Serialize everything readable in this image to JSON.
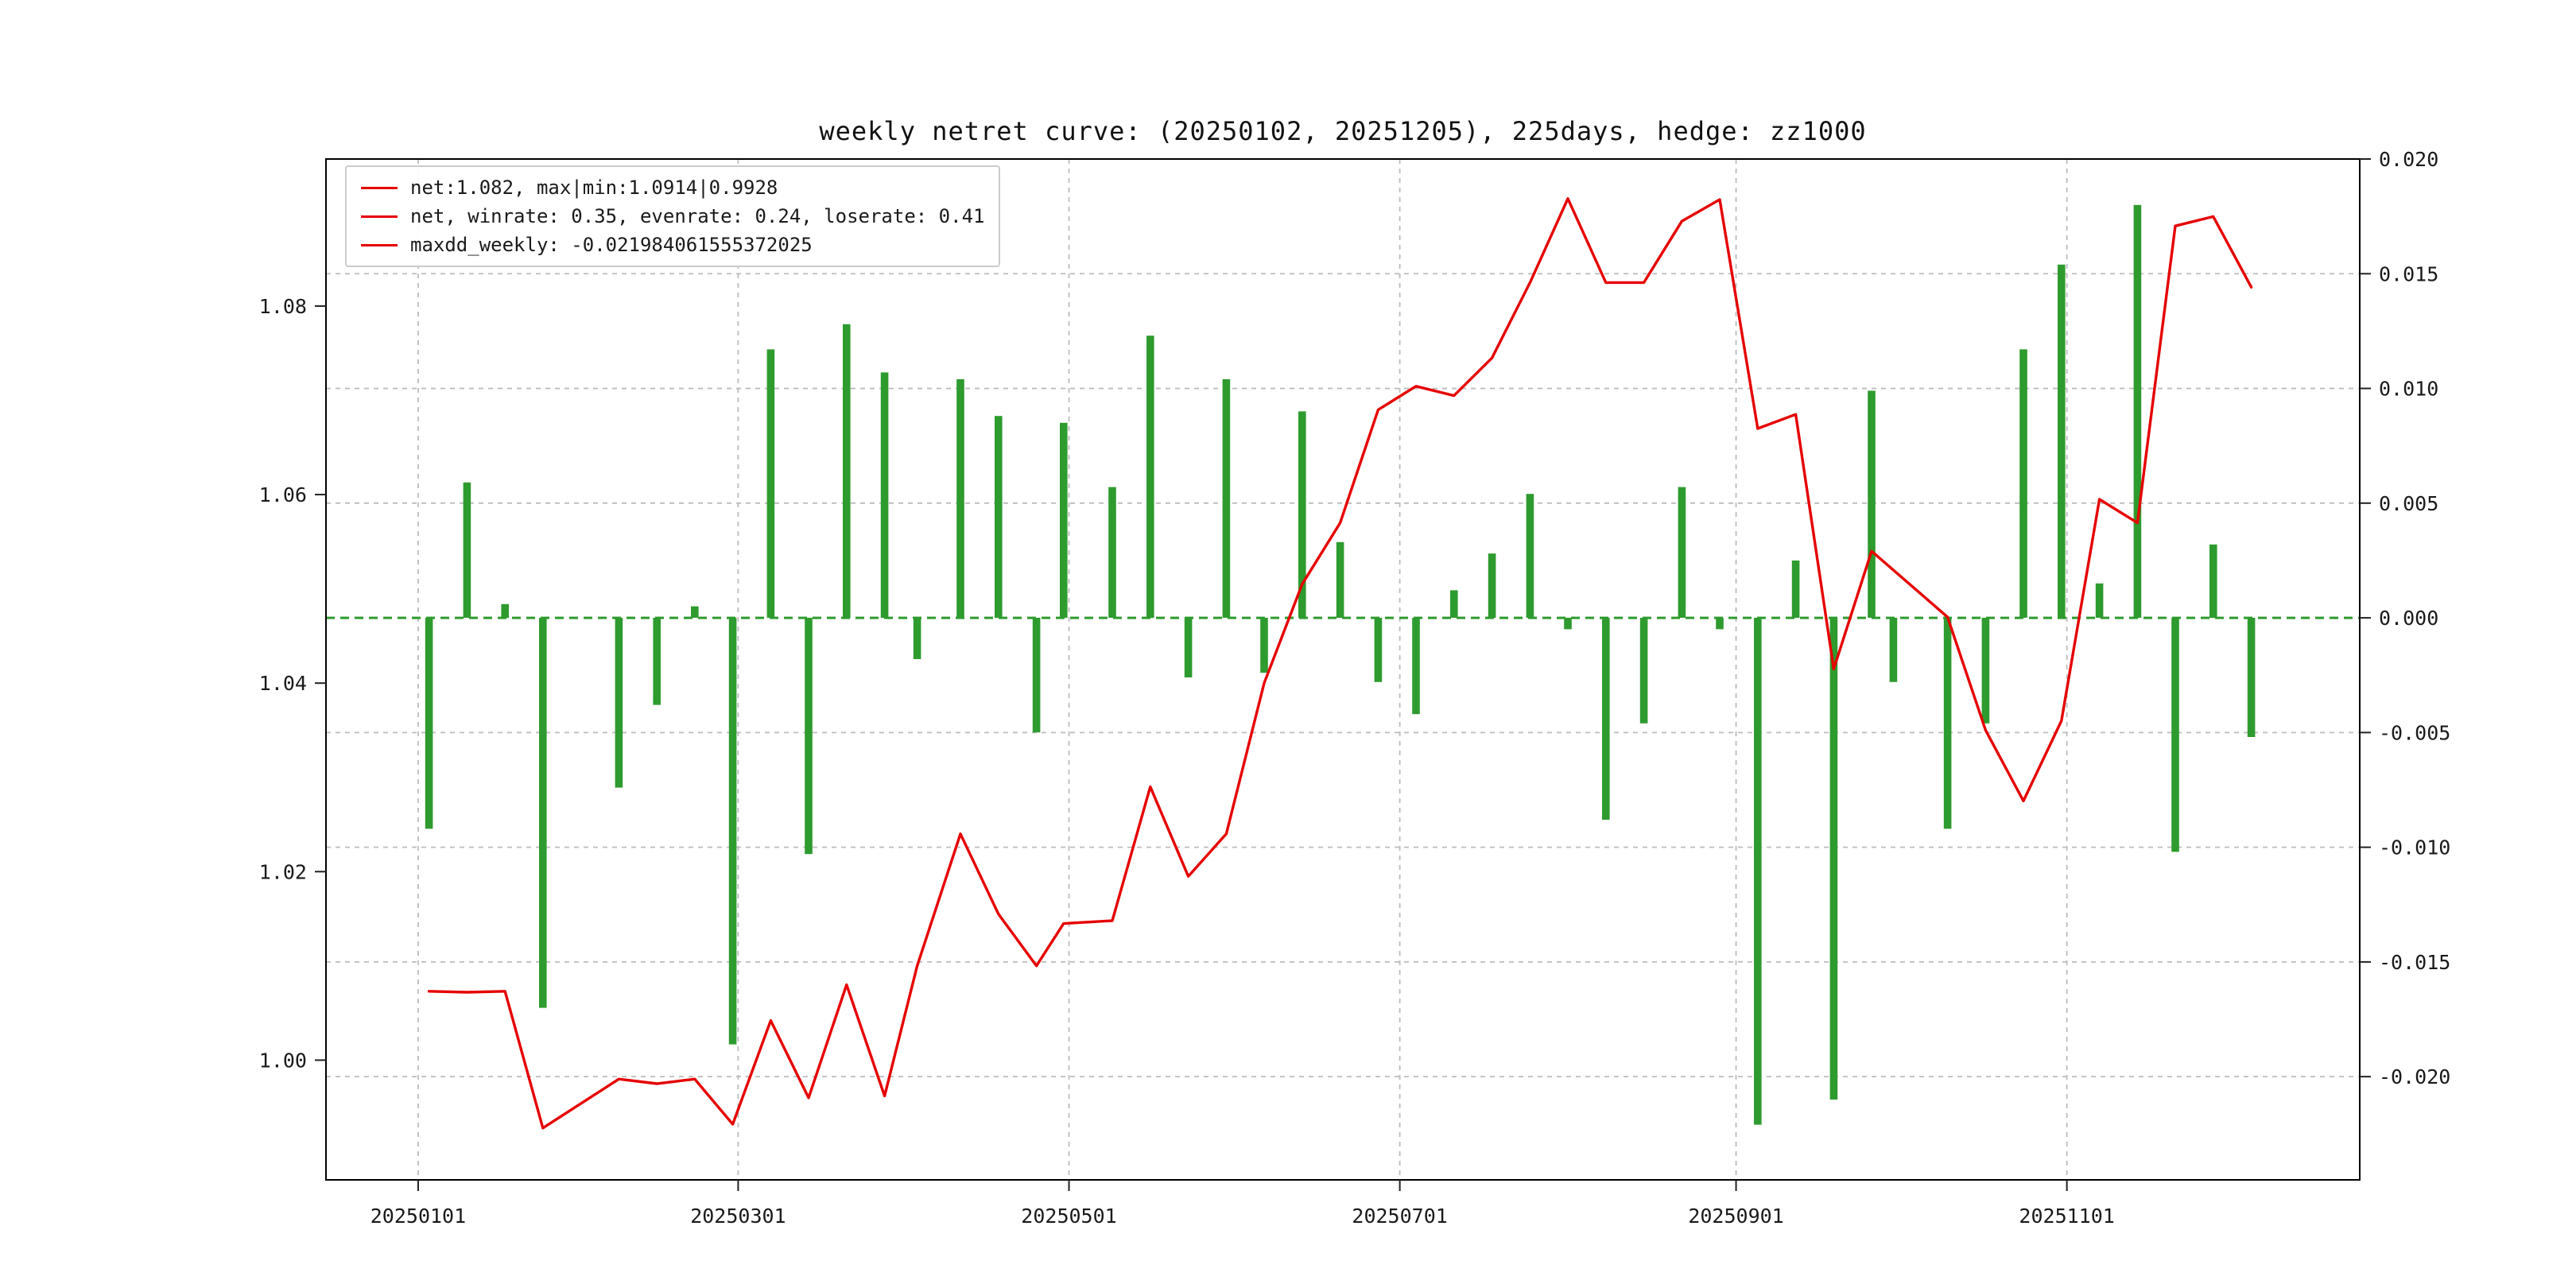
{
  "figure": {
    "background": "#ffffff"
  },
  "chart_data": {
    "type": "bar+line",
    "title": "weekly netret curve: (20250102, 20251205), 225days, hedge: zz1000",
    "legend_position": "upper left",
    "legend_labels": [
      "net:1.082, max|min:1.0914|0.9928",
      "net, winrate: 0.35, evenrate: 0.24, loserate: 0.41",
      "maxdd_weekly: -0.021984061555372025"
    ],
    "stats": {
      "net_final": 1.082,
      "net_max": 1.0914,
      "net_min": 0.9928,
      "winrate": 0.35,
      "evenrate": 0.24,
      "loserate": 0.41,
      "maxdd_weekly": -0.021984061555372025,
      "days": 225,
      "hedge": "zz1000",
      "period_start": "20250102",
      "period_end": "20251205"
    },
    "x_dates": [
      "20250103",
      "20250110",
      "20250117",
      "20250124",
      "20250207",
      "20250214",
      "20250221",
      "20250228",
      "20250307",
      "20250314",
      "20250321",
      "20250328",
      "20250403",
      "20250411",
      "20250418",
      "20250425",
      "20250430",
      "20250509",
      "20250516",
      "20250523",
      "20250530",
      "20250606",
      "20250613",
      "20250620",
      "20250627",
      "20250704",
      "20250711",
      "20250718",
      "20250725",
      "20250801",
      "20250808",
      "20250815",
      "20250822",
      "20250829",
      "20250905",
      "20250912",
      "20250919",
      "20250926",
      "20250930",
      "20251010",
      "20251017",
      "20251024",
      "20251031",
      "20251107",
      "20251114",
      "20251121",
      "20251128",
      "20251205"
    ],
    "series": [
      {
        "name": "net",
        "type": "line",
        "axis": "left",
        "color": "#e60000",
        "values": [
          1.0073,
          1.0072,
          1.0073,
          0.9928,
          0.998,
          0.9975,
          0.998,
          0.9932,
          1.0042,
          0.996,
          1.008,
          0.9962,
          1.01,
          1.024,
          1.0155,
          1.01,
          1.0145,
          1.0148,
          1.029,
          1.0195,
          1.024,
          1.04,
          1.0505,
          1.057,
          1.069,
          1.0715,
          1.0705,
          1.0745,
          1.0825,
          1.0914,
          1.0825,
          1.0825,
          1.089,
          1.0913,
          1.067,
          1.0685,
          1.0415,
          1.054,
          1.052,
          1.047,
          1.035,
          1.0275,
          1.036,
          1.0595,
          1.057,
          1.0885,
          1.0895,
          1.082
        ]
      },
      {
        "name": "weekly_return",
        "type": "bar",
        "axis": "right",
        "color": "#2e9b2e",
        "values": [
          -0.0092,
          0.0059,
          0.0006,
          -0.017,
          -0.0074,
          -0.0038,
          0.0005,
          -0.0186,
          0.0117,
          -0.0103,
          0.0128,
          0.0107,
          -0.0018,
          0.0104,
          0.0088,
          -0.005,
          0.0085,
          0.0057,
          0.0123,
          -0.0026,
          0.0104,
          -0.0024,
          0.009,
          0.0033,
          -0.0028,
          -0.0042,
          0.0012,
          0.0028,
          0.0054,
          -0.0005,
          -0.0088,
          -0.0046,
          0.0057,
          -0.0005,
          -0.0221,
          0.0025,
          -0.021,
          0.0099,
          -0.0028,
          -0.0092,
          -0.0046,
          0.0117,
          0.0154,
          0.0015,
          0.018,
          -0.0102,
          0.0032,
          -0.0052
        ]
      }
    ],
    "left_axis": {
      "ticks": [
        1.0,
        1.02,
        1.04,
        1.06,
        1.08
      ],
      "tick_labels": [
        "1.00",
        "1.02",
        "1.04",
        "1.06",
        "1.08"
      ],
      "range": [
        0.9873,
        1.0956
      ]
    },
    "right_axis": {
      "ticks": [
        0.02,
        0.015,
        0.01,
        0.005,
        0.0,
        -0.005,
        -0.01,
        -0.015,
        -0.02
      ],
      "tick_labels": [
        "0.020",
        "0.015",
        "0.010",
        "0.005",
        "0.000",
        "-0.005",
        "-0.010",
        "-0.015",
        "-0.020"
      ],
      "range": [
        -0.0245,
        0.02
      ]
    },
    "x_axis": {
      "tick_labels": [
        "20250101",
        "20250301",
        "20250501",
        "20250701",
        "20250901",
        "20251101"
      ],
      "tick_days": [
        0,
        59,
        120,
        181,
        243,
        304
      ],
      "day_range": [
        -17,
        358
      ]
    },
    "zero_line": {
      "value": 0.0,
      "color": "#2e9b2e",
      "style": "dashed"
    },
    "grid": {
      "show": true,
      "color": "#bcbcbc",
      "style": "dashed"
    }
  }
}
